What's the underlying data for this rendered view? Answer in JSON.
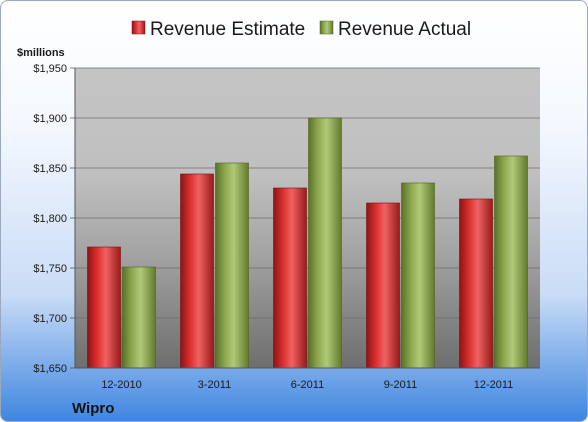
{
  "chart_data": {
    "type": "bar",
    "title": "",
    "unit_label": "$millions",
    "company": "Wipro",
    "categories": [
      "12-2010",
      "3-2011",
      "6-2011",
      "9-2011",
      "12-2011"
    ],
    "series": [
      {
        "name": "Revenue Estimate",
        "color": "#d42a2a",
        "values": [
          1771,
          1844,
          1830,
          1815,
          1819
        ]
      },
      {
        "name": "Revenue Actual",
        "color": "#8aa84a",
        "values": [
          1751,
          1855,
          1900,
          1835,
          1862
        ]
      }
    ],
    "ylim": [
      1650,
      1950
    ],
    "yticks": [
      1650,
      1700,
      1750,
      1800,
      1850,
      1900,
      1950
    ],
    "ytick_labels": [
      "$1,650",
      "$1,700",
      "$1,750",
      "$1,800",
      "$1,850",
      "$1,900",
      "$1,950"
    ],
    "grid": true,
    "legend_position": "top"
  }
}
